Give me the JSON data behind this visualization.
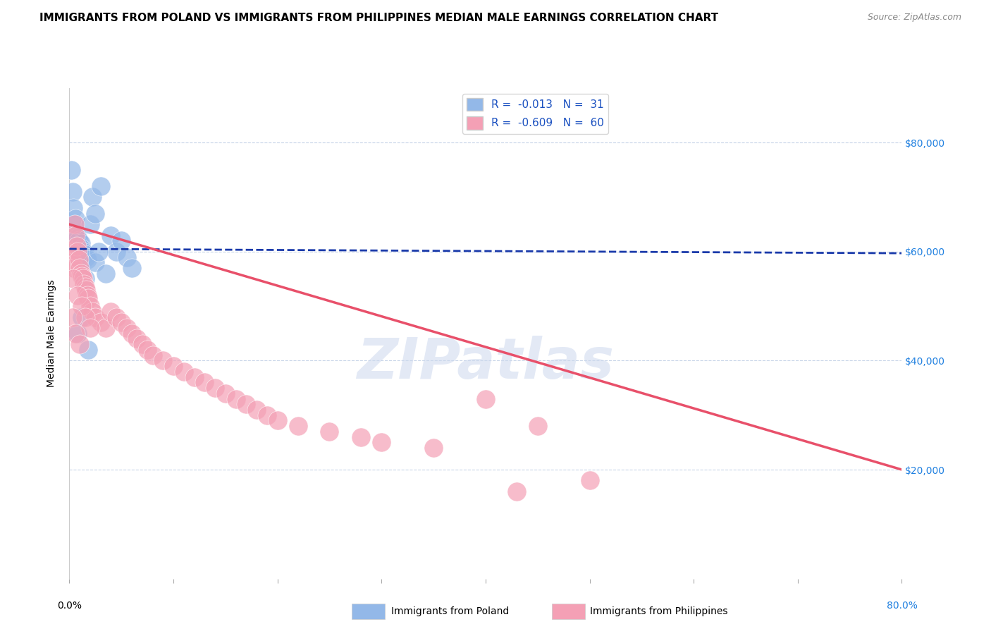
{
  "title": "IMMIGRANTS FROM POLAND VS IMMIGRANTS FROM PHILIPPINES MEDIAN MALE EARNINGS CORRELATION CHART",
  "source": "Source: ZipAtlas.com",
  "ylabel": "Median Male Earnings",
  "y_ticks": [
    20000,
    40000,
    60000,
    80000
  ],
  "y_tick_labels": [
    "$20,000",
    "$40,000",
    "$60,000",
    "$80,000"
  ],
  "xlim": [
    0,
    0.8
  ],
  "ylim": [
    0,
    90000
  ],
  "legend_poland_R": "-0.013",
  "legend_poland_N": "31",
  "legend_philippines_R": "-0.609",
  "legend_philippines_N": "60",
  "poland_color": "#93b8e8",
  "philippines_color": "#f4a0b5",
  "poland_line_color": "#1a3aaa",
  "philippines_line_color": "#e8506a",
  "watermark": "ZIPatlas",
  "poland_scatter": [
    [
      0.002,
      75000
    ],
    [
      0.003,
      71000
    ],
    [
      0.004,
      68000
    ],
    [
      0.005,
      65000
    ],
    [
      0.006,
      66000
    ],
    [
      0.007,
      63000
    ],
    [
      0.008,
      62500
    ],
    [
      0.009,
      62000
    ],
    [
      0.01,
      61000
    ],
    [
      0.011,
      61500
    ],
    [
      0.012,
      60500
    ],
    [
      0.013,
      60000
    ],
    [
      0.015,
      59500
    ],
    [
      0.016,
      59000
    ],
    [
      0.017,
      58500
    ],
    [
      0.02,
      65000
    ],
    [
      0.022,
      70000
    ],
    [
      0.025,
      67000
    ],
    [
      0.03,
      72000
    ],
    [
      0.04,
      63000
    ],
    [
      0.045,
      60000
    ],
    [
      0.05,
      62000
    ],
    [
      0.055,
      59000
    ],
    [
      0.06,
      57000
    ],
    [
      0.008,
      45000
    ],
    [
      0.012,
      48000
    ],
    [
      0.018,
      42000
    ],
    [
      0.025,
      58000
    ],
    [
      0.035,
      56000
    ],
    [
      0.028,
      60000
    ],
    [
      0.015,
      55000
    ]
  ],
  "philippines_scatter": [
    [
      0.002,
      60000
    ],
    [
      0.003,
      58000
    ],
    [
      0.004,
      57000
    ],
    [
      0.005,
      65000
    ],
    [
      0.006,
      63000
    ],
    [
      0.007,
      61000
    ],
    [
      0.008,
      60000
    ],
    [
      0.009,
      58500
    ],
    [
      0.01,
      57000
    ],
    [
      0.011,
      56000
    ],
    [
      0.012,
      55500
    ],
    [
      0.013,
      55000
    ],
    [
      0.014,
      54000
    ],
    [
      0.015,
      53500
    ],
    [
      0.016,
      53000
    ],
    [
      0.017,
      52000
    ],
    [
      0.018,
      51500
    ],
    [
      0.02,
      50000
    ],
    [
      0.022,
      49000
    ],
    [
      0.025,
      48000
    ],
    [
      0.03,
      47000
    ],
    [
      0.035,
      46000
    ],
    [
      0.04,
      49000
    ],
    [
      0.045,
      48000
    ],
    [
      0.05,
      47000
    ],
    [
      0.055,
      46000
    ],
    [
      0.06,
      45000
    ],
    [
      0.065,
      44000
    ],
    [
      0.07,
      43000
    ],
    [
      0.075,
      42000
    ],
    [
      0.08,
      41000
    ],
    [
      0.09,
      40000
    ],
    [
      0.1,
      39000
    ],
    [
      0.11,
      38000
    ],
    [
      0.12,
      37000
    ],
    [
      0.13,
      36000
    ],
    [
      0.14,
      35000
    ],
    [
      0.15,
      34000
    ],
    [
      0.16,
      33000
    ],
    [
      0.17,
      32000
    ],
    [
      0.18,
      31000
    ],
    [
      0.19,
      30000
    ],
    [
      0.2,
      29000
    ],
    [
      0.22,
      28000
    ],
    [
      0.25,
      27000
    ],
    [
      0.28,
      26000
    ],
    [
      0.3,
      25000
    ],
    [
      0.35,
      24000
    ],
    [
      0.004,
      55000
    ],
    [
      0.008,
      52000
    ],
    [
      0.012,
      50000
    ],
    [
      0.015,
      48000
    ],
    [
      0.02,
      46000
    ],
    [
      0.4,
      33000
    ],
    [
      0.45,
      28000
    ],
    [
      0.5,
      18000
    ],
    [
      0.43,
      16000
    ],
    [
      0.003,
      48000
    ],
    [
      0.006,
      45000
    ],
    [
      0.01,
      43000
    ]
  ],
  "poland_line": [
    0.0,
    60500,
    0.8,
    59700
  ],
  "philippines_line": [
    0.0,
    65000,
    0.8,
    20000
  ],
  "background_color": "#ffffff",
  "grid_color": "#c8d4e8",
  "title_fontsize": 11,
  "axis_label_fontsize": 10,
  "tick_fontsize": 10,
  "legend_fontsize": 11
}
